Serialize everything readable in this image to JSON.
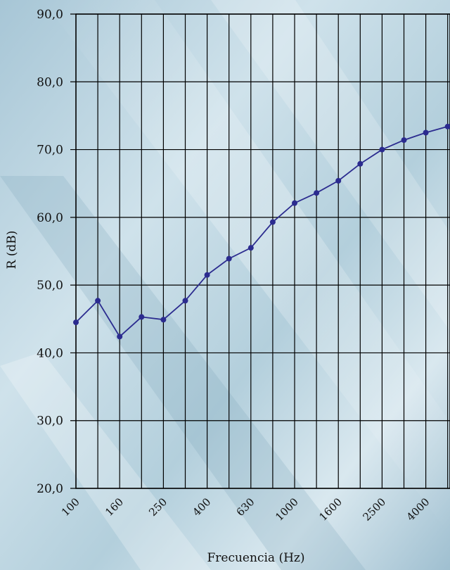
{
  "chart_data": {
    "type": "line",
    "title": "",
    "xlabel": "Frecuencia (Hz)",
    "ylabel": "R (dB)",
    "ylim": [
      20,
      90
    ],
    "yticks": [
      "20,0",
      "30,0",
      "40,0",
      "50,0",
      "60,0",
      "70,0",
      "80,0",
      "90,0"
    ],
    "x_label_ticks": [
      "100",
      "160",
      "250",
      "400",
      "630",
      "1000",
      "1600",
      "2500",
      "4000"
    ],
    "x_label_every": 2,
    "grid": true,
    "series": [
      {
        "color": "#2b2b8f",
        "x": [
          100,
          125,
          160,
          200,
          250,
          315,
          400,
          500,
          630,
          800,
          1000,
          1250,
          1600,
          2000,
          2500,
          3150,
          4000,
          5000
        ],
        "values": [
          44.5,
          47.7,
          42.4,
          45.3,
          44.9,
          47.7,
          51.5,
          53.9,
          55.5,
          59.3,
          62.1,
          63.6,
          65.4,
          67.9,
          70.0,
          71.4,
          72.5,
          73.4
        ]
      }
    ]
  }
}
